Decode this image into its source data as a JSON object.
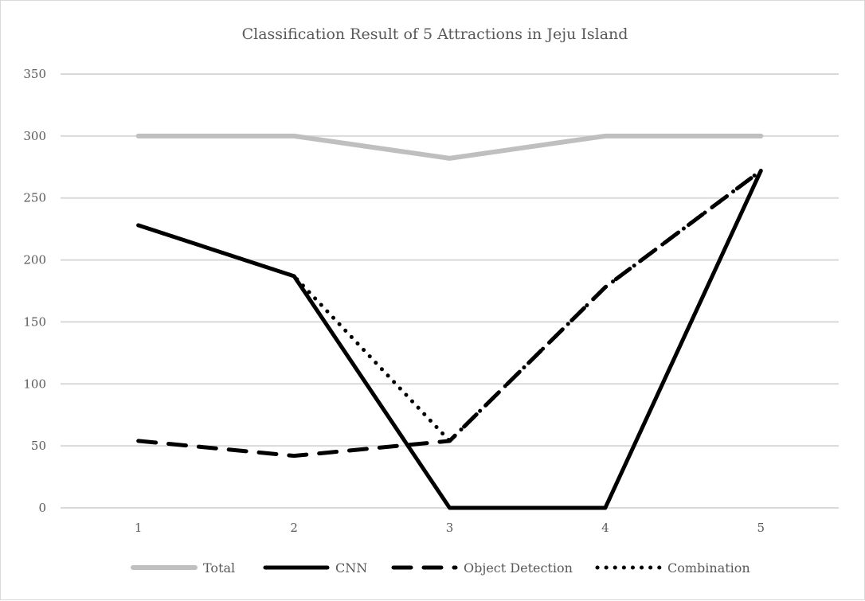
{
  "chart_data": {
    "type": "line",
    "title": "Classification Result of 5 Attractions in Jeju Island",
    "xlabel": "",
    "ylabel": "",
    "categories": [
      "1",
      "2",
      "3",
      "4",
      "5"
    ],
    "ylim": [
      0,
      350
    ],
    "yticks": [
      0,
      50,
      100,
      150,
      200,
      250,
      300,
      350
    ],
    "grid": true,
    "legend_position": "bottom",
    "series": [
      {
        "name": "Total",
        "values": [
          300,
          300,
          282,
          300,
          300
        ],
        "color": "#bfbfbf",
        "style": "solid-thick"
      },
      {
        "name": "CNN",
        "values": [
          228,
          187,
          0,
          0,
          272
        ],
        "color": "#000000",
        "style": "solid"
      },
      {
        "name": "Object Detection",
        "values": [
          54,
          42,
          54,
          178,
          272
        ],
        "color": "#000000",
        "style": "dashed"
      },
      {
        "name": "Combination",
        "values": [
          228,
          187,
          54,
          178,
          272
        ],
        "color": "#000000",
        "style": "dotted"
      }
    ]
  }
}
